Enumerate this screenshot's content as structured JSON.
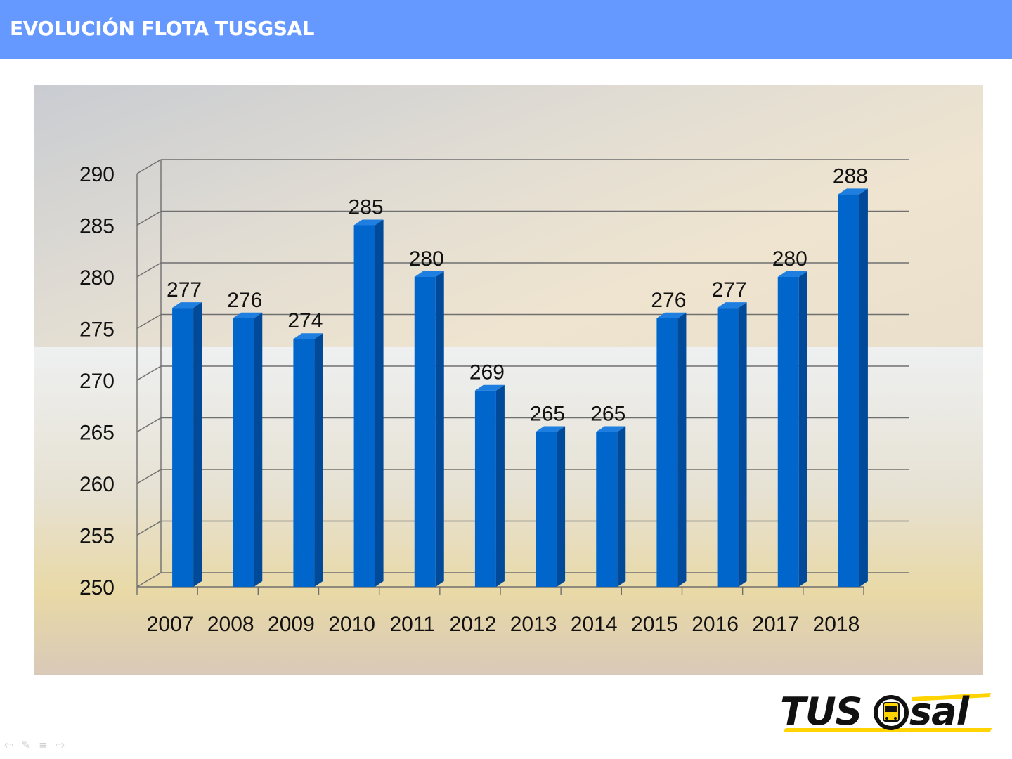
{
  "header": {
    "title": "EVOLUCIÓN FLOTA TUSGSAL",
    "bar_color": "#6699ff"
  },
  "chart_data": {
    "type": "bar",
    "title": "",
    "xlabel": "",
    "ylabel": "",
    "categories": [
      "2007",
      "2008",
      "2009",
      "2010",
      "2011",
      "2012",
      "2013",
      "2014",
      "2015",
      "2016",
      "2017",
      "2018"
    ],
    "values": [
      277,
      276,
      274,
      285,
      280,
      269,
      265,
      265,
      276,
      277,
      280,
      288
    ],
    "ylim": [
      250,
      290
    ],
    "yticks": [
      "250",
      "255",
      "260",
      "265",
      "270",
      "275",
      "280",
      "285",
      "290"
    ],
    "grid": true,
    "three_d": true,
    "bar_color": "#0066cc",
    "legend": "none",
    "data_labels": true
  },
  "logo": {
    "left_text": "TUS",
    "right_text": "sal",
    "icon": "bus-icon",
    "accent_color": "#ffd400"
  },
  "nav": {
    "icons": [
      "prev-arrow-icon",
      "pen-icon",
      "menu-icon",
      "next-arrow-icon"
    ],
    "glyphs": [
      "⇦",
      "✎",
      "≡",
      "⇨"
    ]
  }
}
